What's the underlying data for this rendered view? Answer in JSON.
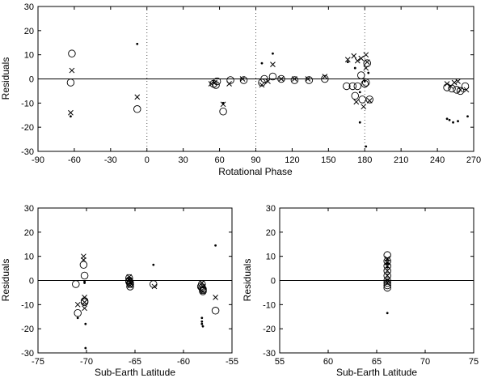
{
  "chart_data": [
    {
      "type": "scatter",
      "xlabel": "Rotational Phase",
      "ylabel": "Residuals",
      "xlim": [
        -90,
        270
      ],
      "ylim": [
        -30,
        30
      ],
      "xticks": [
        -90,
        -60,
        -30,
        0,
        30,
        60,
        90,
        120,
        150,
        180,
        210,
        240,
        270
      ],
      "yticks": [
        -30,
        -20,
        -10,
        0,
        10,
        20,
        30
      ],
      "zero_line": true,
      "vlines": [
        0,
        90,
        180
      ],
      "series": [
        {
          "marker": "circle",
          "points": [
            [
              -62,
              10.5
            ],
            [
              -63,
              -1.5
            ],
            [
              -8,
              -12.5
            ],
            [
              55,
              -2
            ],
            [
              57,
              -2.5
            ],
            [
              58,
              -1
            ],
            [
              63,
              -13.5
            ],
            [
              69,
              -0.5
            ],
            [
              80,
              -0.5
            ],
            [
              95,
              -1.5
            ],
            [
              97,
              0
            ],
            [
              104,
              1
            ],
            [
              111,
              0
            ],
            [
              122,
              -0.5
            ],
            [
              134,
              -0.5
            ],
            [
              147,
              0
            ],
            [
              165,
              -3
            ],
            [
              170,
              -3
            ],
            [
              172,
              -7
            ],
            [
              174,
              -3
            ],
            [
              177,
              1.5
            ],
            [
              178,
              -8.5
            ],
            [
              180,
              -2
            ],
            [
              181,
              -1.5
            ],
            [
              182,
              6.5
            ],
            [
              184,
              -8.5
            ],
            [
              248,
              -3.5
            ],
            [
              252,
              -4
            ],
            [
              256,
              -4.5
            ],
            [
              259,
              -5
            ],
            [
              263,
              -3
            ]
          ]
        },
        {
          "marker": "cross",
          "points": [
            [
              -62,
              3.5
            ],
            [
              -63,
              -14
            ],
            [
              -8,
              -7.5
            ],
            [
              53,
              -2
            ],
            [
              56,
              -1.5
            ],
            [
              63,
              -10.5
            ],
            [
              68,
              -2
            ],
            [
              79,
              0
            ],
            [
              95,
              -2.5
            ],
            [
              100,
              -1
            ],
            [
              104,
              6
            ],
            [
              111,
              0
            ],
            [
              122,
              0
            ],
            [
              133,
              0
            ],
            [
              147,
              1
            ],
            [
              166,
              8
            ],
            [
              171,
              9.5
            ],
            [
              173,
              -9.5
            ],
            [
              174,
              7.5
            ],
            [
              177,
              8.5
            ],
            [
              179,
              -11.5
            ],
            [
              181,
              4.5
            ],
            [
              181,
              10
            ],
            [
              182,
              7
            ],
            [
              184,
              -9
            ],
            [
              248,
              -2
            ],
            [
              251,
              -3
            ],
            [
              254,
              -1.5
            ],
            [
              257,
              -1
            ],
            [
              259,
              -4.5
            ],
            [
              264,
              -4.5
            ]
          ]
        },
        {
          "marker": "dot",
          "points": [
            [
              -63,
              -15.5
            ],
            [
              -8,
              14.5
            ],
            [
              63,
              -10
            ],
            [
              95,
              6.5
            ],
            [
              104,
              10.5
            ],
            [
              166,
              7
            ],
            [
              172,
              4.5
            ],
            [
              176,
              -5.5
            ],
            [
              176,
              -18
            ],
            [
              180,
              -1
            ],
            [
              181,
              -28
            ],
            [
              183,
              2.5
            ],
            [
              248,
              -16.5
            ],
            [
              250,
              -17
            ],
            [
              253,
              -18
            ],
            [
              257,
              -17.5
            ],
            [
              265,
              -15.5
            ]
          ]
        }
      ]
    },
    {
      "type": "scatter",
      "xlabel": "Sub-Earth Latitude",
      "ylabel": "Residuals",
      "xlim": [
        -75,
        -55
      ],
      "ylim": [
        -30,
        30
      ],
      "xticks": [
        -75,
        -70,
        -65,
        -60,
        -55
      ],
      "yticks": [
        -30,
        -20,
        -10,
        0,
        10,
        20,
        30
      ],
      "zero_line": true,
      "series": [
        {
          "marker": "circle",
          "points": [
            [
              -71.1,
              -1.5
            ],
            [
              -70.9,
              -13.5
            ],
            [
              -70.3,
              6.5
            ],
            [
              -70.2,
              2
            ],
            [
              -70.2,
              -8.5
            ],
            [
              -70.2,
              -9
            ],
            [
              -65.6,
              0
            ],
            [
              -65.6,
              1
            ],
            [
              -65.6,
              -0.5
            ],
            [
              -65.5,
              -1
            ],
            [
              -65.5,
              -2.5
            ],
            [
              -65.5,
              -1.5
            ],
            [
              -63.1,
              -1.5
            ],
            [
              -58.2,
              -2.5
            ],
            [
              -58.1,
              -1.5
            ],
            [
              -58.1,
              -3
            ],
            [
              -58,
              -4
            ],
            [
              -58,
              -4.5
            ],
            [
              -58,
              -3.5
            ],
            [
              -56.7,
              -12.5
            ]
          ]
        },
        {
          "marker": "cross",
          "points": [
            [
              -70.9,
              -10
            ],
            [
              -70.3,
              10
            ],
            [
              -70.3,
              8.5
            ],
            [
              -70.2,
              -7
            ],
            [
              -70.2,
              -9
            ],
            [
              -70.2,
              -11.5
            ],
            [
              -65.6,
              1.5
            ],
            [
              -65.6,
              0
            ],
            [
              -65.5,
              -1
            ],
            [
              -65.5,
              -2
            ],
            [
              -63,
              -2.5
            ],
            [
              -58.1,
              -1
            ],
            [
              -58,
              -4.5
            ],
            [
              -58,
              -2.5
            ],
            [
              -56.7,
              -7
            ]
          ]
        },
        {
          "marker": "dot",
          "points": [
            [
              -70.9,
              -15.5
            ],
            [
              -70.2,
              -1
            ],
            [
              -70.2,
              -0.5
            ],
            [
              -70.1,
              -18
            ],
            [
              -70.1,
              -28
            ],
            [
              -65.6,
              0.5
            ],
            [
              -65.5,
              -1
            ],
            [
              -63.1,
              6.5
            ],
            [
              -58.1,
              -15.5
            ],
            [
              -58.1,
              -17
            ],
            [
              -58.1,
              -18
            ],
            [
              -58,
              -19
            ],
            [
              -56.7,
              14.5
            ]
          ]
        }
      ]
    },
    {
      "type": "scatter",
      "xlabel": "Sub-Earth Latitude",
      "ylabel": "Residuals",
      "xlim": [
        55,
        75
      ],
      "ylim": [
        -30,
        30
      ],
      "xticks": [
        55,
        60,
        65,
        70,
        75
      ],
      "yticks": [
        -30,
        -20,
        -10,
        0,
        10,
        20,
        30
      ],
      "zero_line": true,
      "series": [
        {
          "marker": "circle",
          "points": [
            [
              66.1,
              10.5
            ],
            [
              66.1,
              8
            ],
            [
              66.1,
              6
            ],
            [
              66.1,
              4
            ],
            [
              66.1,
              2
            ],
            [
              66.1,
              0
            ],
            [
              66.1,
              -1
            ],
            [
              66.1,
              -2
            ],
            [
              66.1,
              -3
            ]
          ]
        },
        {
          "marker": "cross",
          "points": [
            [
              66.1,
              9
            ],
            [
              66.1,
              7.5
            ],
            [
              66.1,
              6
            ],
            [
              66.1,
              4
            ],
            [
              66.1,
              2
            ],
            [
              66.1,
              0
            ],
            [
              66.1,
              -1
            ]
          ]
        },
        {
          "marker": "dot",
          "points": [
            [
              66.1,
              8.5
            ],
            [
              66.1,
              7
            ],
            [
              66.1,
              5.5
            ],
            [
              66.1,
              -13.5
            ]
          ]
        }
      ]
    }
  ]
}
